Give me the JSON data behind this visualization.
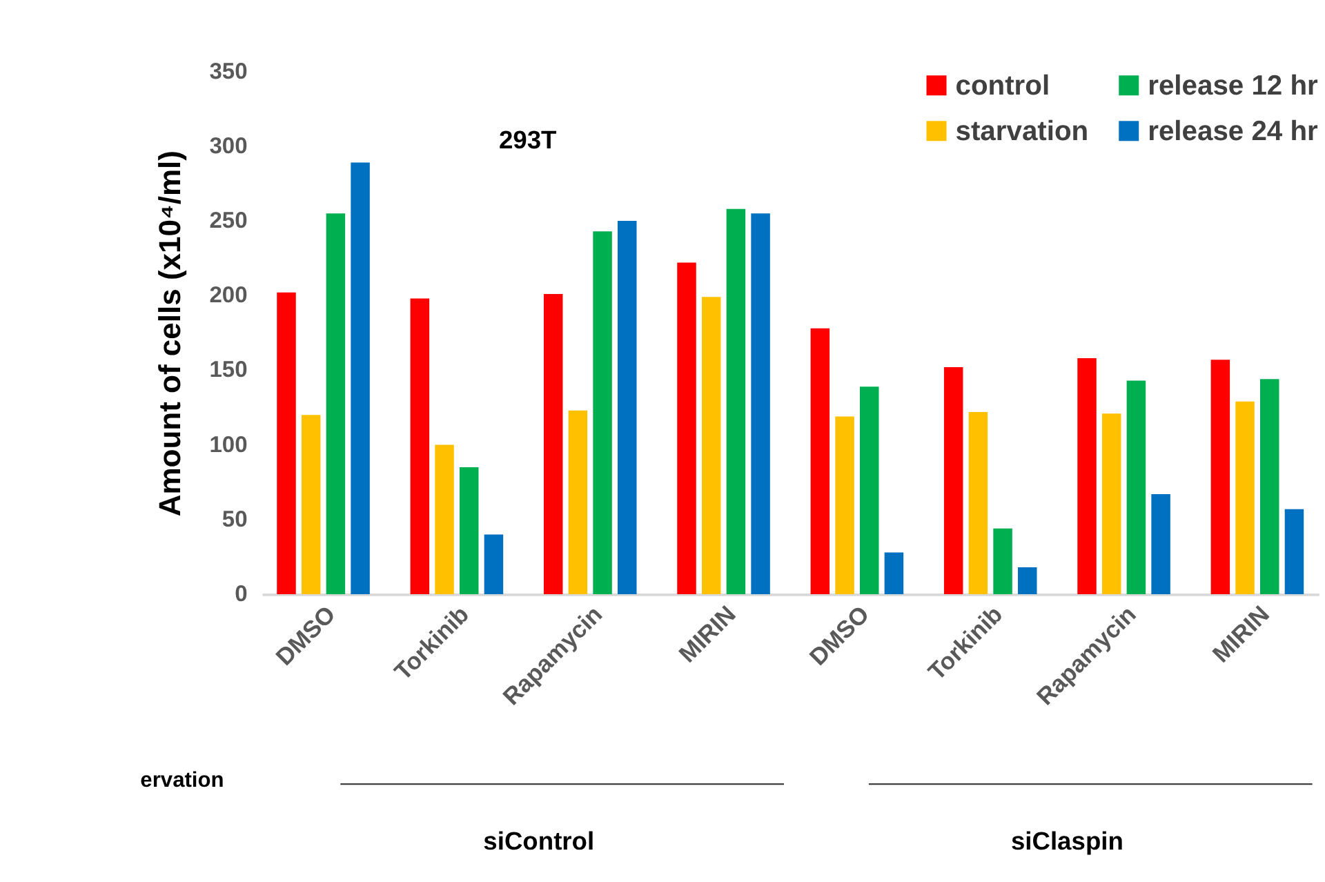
{
  "chart_data": {
    "type": "bar",
    "title": "293T",
    "ylabel": "Amount of cells (x10⁴/ml)",
    "categories": [
      "DMSO",
      "Torkinib",
      "Rapamycin",
      "MIRIN",
      "DMSO",
      "Torkinib",
      "Rapamycin",
      "MIRIN"
    ],
    "series": [
      {
        "name": "control",
        "color": "#ff0000",
        "values": [
          202,
          198,
          201,
          222,
          178,
          152,
          158,
          157
        ]
      },
      {
        "name": "starvation",
        "color": "#ffc000",
        "values": [
          120,
          100,
          123,
          199,
          119,
          122,
          121,
          129
        ]
      },
      {
        "name": "release 12 hr",
        "color": "#00b050",
        "values": [
          255,
          85,
          243,
          258,
          139,
          44,
          143,
          144
        ]
      },
      {
        "name": "release 24 hr",
        "color": "#0070c0",
        "values": [
          289,
          40,
          250,
          255,
          28,
          18,
          67,
          57
        ]
      }
    ],
    "ylim": [
      0,
      350
    ],
    "yticks": [
      0,
      50,
      100,
      150,
      200,
      250,
      300,
      350
    ],
    "grid": false,
    "legend": "top right",
    "annotations": [
      "ervation",
      "siControl",
      "siClaspin"
    ]
  }
}
